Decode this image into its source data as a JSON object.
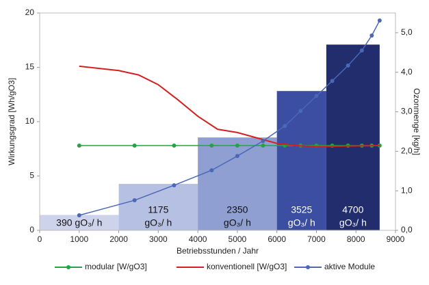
{
  "chart_data": {
    "type": "bar-line",
    "xlabel": "Betriebsstunden / Jahr",
    "ylabel": "Wirkungsgrad [Wh/gO3]",
    "y2label": "Ozonmenge [kg/h]",
    "xlim": [
      0,
      9000
    ],
    "xticks": [
      0,
      1000,
      2000,
      3000,
      4000,
      5000,
      6000,
      7000,
      8000,
      9000
    ],
    "ylim": [
      0,
      20
    ],
    "yticks": [
      0,
      5,
      10,
      15,
      20
    ],
    "y2lim": [
      0,
      5.5
    ],
    "y2ticks": [
      {
        "value": 0,
        "label": "0,0"
      },
      {
        "value": 1,
        "label": "1,0"
      },
      {
        "value": 2,
        "label": "2,0"
      },
      {
        "value": 3,
        "label": "3,0"
      },
      {
        "value": 4,
        "label": "4,0"
      },
      {
        "value": 5,
        "label": "5,0"
      }
    ],
    "grid": false,
    "legend": "bottom",
    "bars": {
      "axis": "y2",
      "bins": [
        0,
        2000,
        4000,
        6000,
        7250,
        8600
      ],
      "values": [
        0.39,
        1.175,
        2.35,
        3.525,
        4.7
      ],
      "value_labels": [
        [
          "390 gO₃/ h"
        ],
        [
          "1175",
          "gO₃/ h"
        ],
        [
          "2350",
          "gO₃/ h"
        ],
        [
          "3525",
          "gO₃/ h"
        ],
        [
          "4700",
          "gO₃/ h"
        ]
      ],
      "colors": [
        "#cdd3ea",
        "#b6c0e2",
        "#909fd2",
        "#3b4ea2",
        "#222d6e"
      ],
      "label_colors": [
        "#111111",
        "#111111",
        "#111111",
        "#ffffff",
        "#ffffff"
      ]
    },
    "series": [
      {
        "name": "modular [W/gO3]",
        "color": "#22a541",
        "marker": true,
        "x": [
          1000,
          2400,
          3400,
          4350,
          5000,
          5650,
          6200,
          6600,
          7000,
          7400,
          7800,
          8150,
          8400,
          8600
        ],
        "values": [
          7.8,
          7.8,
          7.8,
          7.8,
          7.8,
          7.8,
          7.8,
          7.8,
          7.8,
          7.8,
          7.8,
          7.8,
          7.8,
          7.8
        ]
      },
      {
        "name": "konventionell [W/gO3]",
        "color": "#d41f1f",
        "marker": false,
        "x": [
          1000,
          2000,
          2500,
          3000,
          3500,
          4000,
          4500,
          5000,
          5500,
          6000,
          6500,
          7000,
          8600
        ],
        "values": [
          15.1,
          14.7,
          14.3,
          13.4,
          12.0,
          10.5,
          9.3,
          9.0,
          8.5,
          8.0,
          7.8,
          7.7,
          7.8
        ]
      },
      {
        "name": "aktive Module",
        "color": "#4a68b5",
        "marker": true,
        "axis": "y2",
        "x": [
          1000,
          2400,
          3400,
          4350,
          5000,
          5650,
          6200,
          6600,
          7000,
          7400,
          7800,
          8150,
          8400,
          8600
        ],
        "values": [
          0.38,
          0.76,
          1.14,
          1.52,
          1.88,
          2.26,
          2.64,
          3.02,
          3.4,
          3.78,
          4.17,
          4.55,
          4.93,
          5.31
        ]
      }
    ]
  }
}
